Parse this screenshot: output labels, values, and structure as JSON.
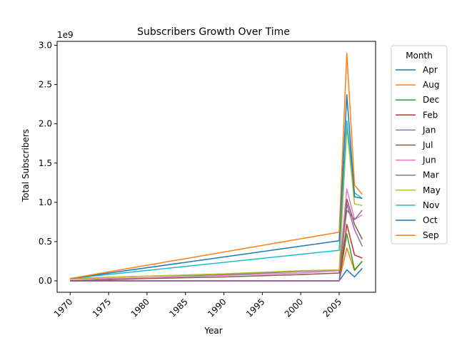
{
  "chart_data": {
    "type": "line",
    "title": "Subscribers Growth Over Time",
    "xlabel": "Year",
    "ylabel": "Total Subscribers",
    "y_offset_label": "1e9",
    "xlim": [
      1970,
      2008
    ],
    "ylim": [
      -0.145,
      3.05
    ],
    "x_ticks": [
      1970,
      1975,
      1980,
      1985,
      1990,
      1995,
      2000,
      2005
    ],
    "y_ticks": [
      "0.0",
      "0.5",
      "1.0",
      "1.5",
      "2.0",
      "2.5",
      "3.0"
    ],
    "y_tick_values": [
      0.0,
      0.5,
      1.0,
      1.5,
      2.0,
      2.5,
      3.0
    ],
    "grid": false,
    "legend": {
      "title": "Month",
      "placement": "outside right"
    },
    "series": [
      {
        "name": "Apr",
        "color": "#1f77b4",
        "points": [
          [
            1970,
            0.0
          ],
          [
            2005,
            0.0
          ],
          [
            2006,
            0.14
          ],
          [
            2007,
            0.05
          ],
          [
            2008,
            0.16
          ]
        ]
      },
      {
        "name": "Aug",
        "color": "#ff7f0e",
        "points": [
          [
            1970,
            0.0
          ],
          [
            2005,
            0.0
          ],
          [
            2006,
            0.42
          ],
          [
            2007,
            0.13
          ],
          [
            2008,
            0.25
          ]
        ]
      },
      {
        "name": "Dec",
        "color": "#2ca02c",
        "points": [
          [
            1970,
            0.0
          ],
          [
            2005,
            0.0
          ],
          [
            2006,
            0.6
          ],
          [
            2007,
            0.14
          ],
          [
            2008,
            0.25
          ]
        ]
      },
      {
        "name": "Feb",
        "color": "#d62728",
        "points": [
          [
            1970,
            0.0
          ],
          [
            2005,
            0.0
          ],
          [
            2006,
            0.72
          ],
          [
            2007,
            0.33
          ],
          [
            2008,
            0.29
          ]
        ]
      },
      {
        "name": "Jan",
        "color": "#9467bd",
        "points": [
          [
            1970,
            0.0
          ],
          [
            2005,
            0.0
          ],
          [
            2006,
            0.98
          ],
          [
            2007,
            0.65
          ],
          [
            2008,
            0.44
          ]
        ]
      },
      {
        "name": "Jul",
        "color": "#8c564b",
        "points": [
          [
            1970,
            0.0
          ],
          [
            1980,
            0.03
          ],
          [
            1990,
            0.05
          ],
          [
            2000,
            0.08
          ],
          [
            2005,
            0.1
          ],
          [
            2006,
            1.04
          ],
          [
            2007,
            0.72
          ],
          [
            2008,
            0.53
          ]
        ]
      },
      {
        "name": "Jun",
        "color": "#e377c2",
        "points": [
          [
            1970,
            0.02
          ],
          [
            1980,
            0.04
          ],
          [
            1990,
            0.07
          ],
          [
            2000,
            0.1
          ],
          [
            2005,
            0.13
          ],
          [
            2006,
            1.17
          ],
          [
            2007,
            0.78
          ],
          [
            2008,
            0.84
          ]
        ]
      },
      {
        "name": "Mar",
        "color": "#7f7f7f",
        "points": [
          [
            1970,
            0.03
          ],
          [
            1980,
            0.06
          ],
          [
            1990,
            0.08
          ],
          [
            2000,
            0.12
          ],
          [
            2005,
            0.14
          ],
          [
            2006,
            0.9
          ],
          [
            2007,
            0.78
          ],
          [
            2008,
            0.9
          ]
        ]
      },
      {
        "name": "May",
        "color": "#bcbd22",
        "points": [
          [
            1970,
            0.03
          ],
          [
            1980,
            0.06
          ],
          [
            1990,
            0.09
          ],
          [
            2000,
            0.13
          ],
          [
            2005,
            0.14
          ],
          [
            2006,
            1.95
          ],
          [
            2007,
            0.98
          ],
          [
            2008,
            0.96
          ]
        ]
      },
      {
        "name": "Nov",
        "color": "#17becf",
        "points": [
          [
            1970,
            0.03
          ],
          [
            2005,
            0.39
          ],
          [
            2006,
            2.04
          ],
          [
            2007,
            1.12
          ],
          [
            2008,
            1.05
          ]
        ]
      },
      {
        "name": "Oct",
        "color": "#1f77b4",
        "points": [
          [
            1970,
            0.03
          ],
          [
            2005,
            0.51
          ],
          [
            2006,
            2.37
          ],
          [
            2007,
            1.07
          ],
          [
            2008,
            1.05
          ]
        ]
      },
      {
        "name": "Sep",
        "color": "#ff7f0e",
        "points": [
          [
            1970,
            0.03
          ],
          [
            2005,
            0.62
          ],
          [
            2006,
            2.9
          ],
          [
            2007,
            1.22
          ],
          [
            2008,
            1.1
          ]
        ]
      }
    ]
  }
}
